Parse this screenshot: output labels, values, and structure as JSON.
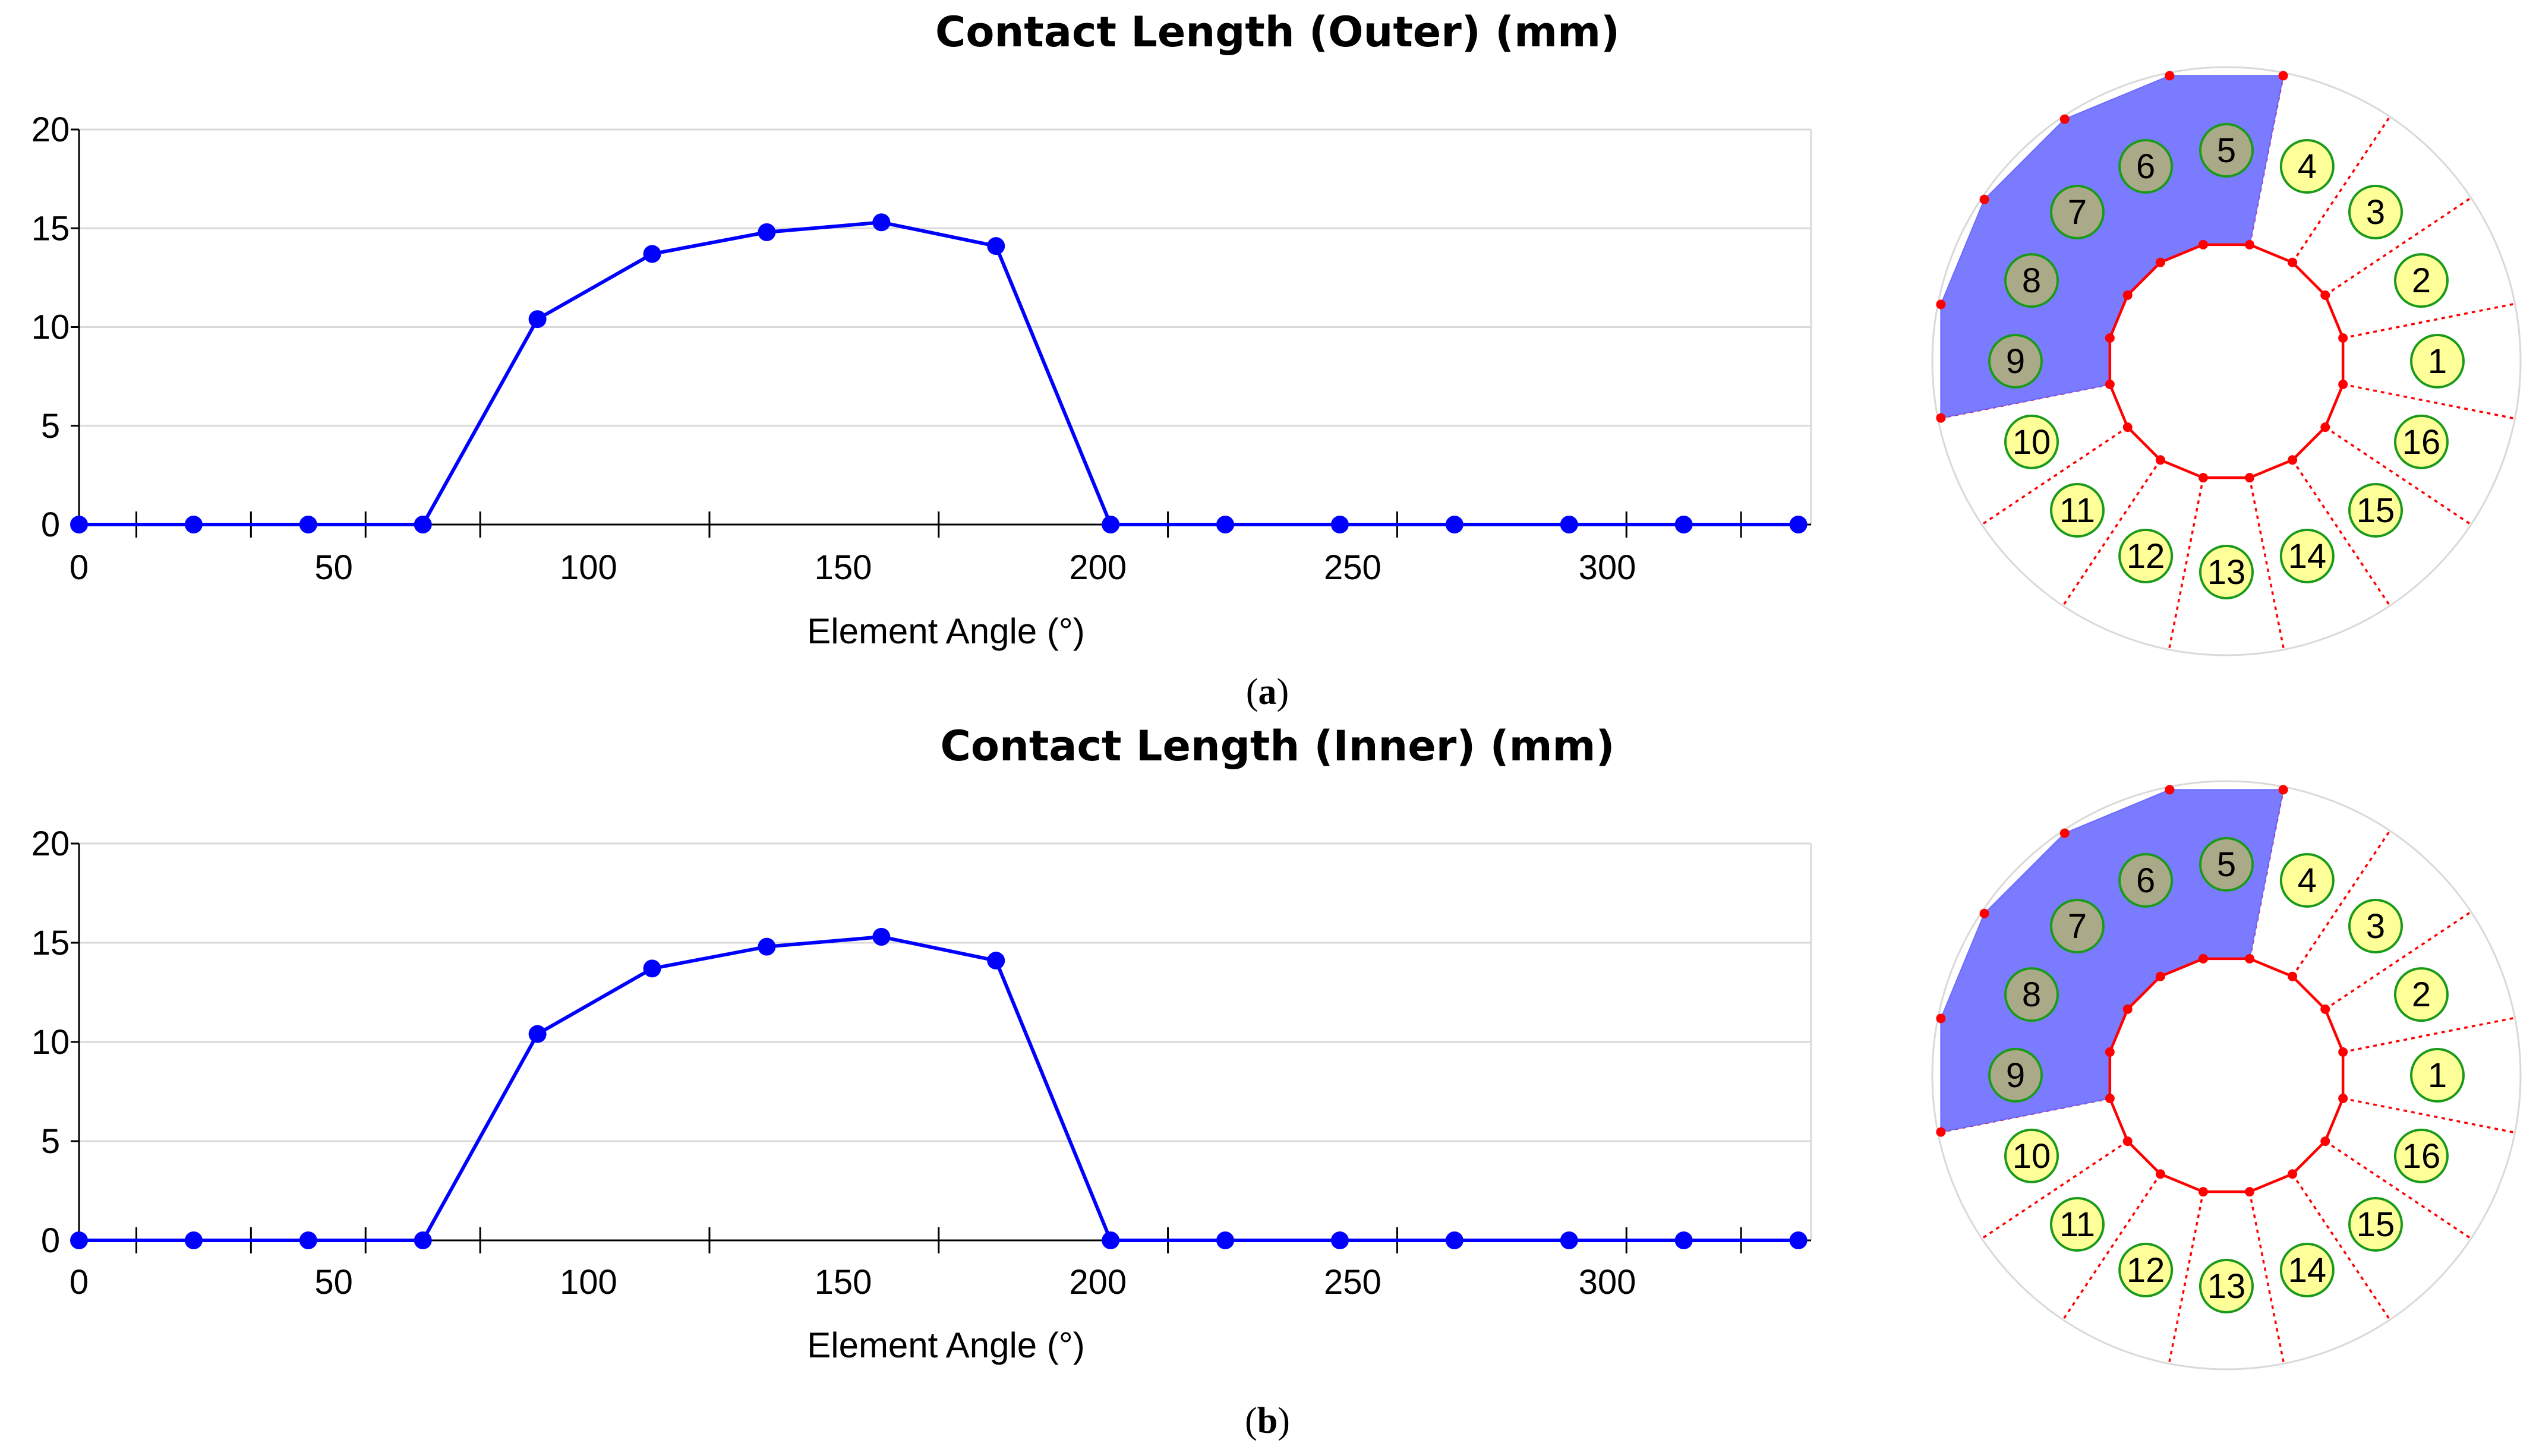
{
  "panels": [
    {
      "caption_label": "a",
      "chart_data": {
        "type": "line",
        "title": "Contact Length (Outer) (mm)",
        "xlabel": "Element Angle (°)",
        "ylabel": "",
        "xlim": [
          0,
          340
        ],
        "ylim": [
          0,
          20
        ],
        "xticks": [
          0,
          50,
          100,
          150,
          200,
          250,
          300
        ],
        "yticks": [
          0,
          5,
          10,
          15,
          20
        ],
        "grid": true,
        "series": [
          {
            "x": [
              0,
              22.5,
              45,
              67.5,
              90,
              112.5,
              135,
              157.5,
              180,
              202.5,
              225,
              247.5,
              270,
              292.5,
              315,
              337.5
            ],
            "values": [
              0,
              0,
              0,
              0,
              10.4,
              13.7,
              14.8,
              15.3,
              14.1,
              0,
              0,
              0,
              0,
              0,
              0,
              0
            ]
          }
        ]
      },
      "diagram": {
        "elements": [
          "1",
          "2",
          "3",
          "4",
          "5",
          "6",
          "7",
          "8",
          "9",
          "10",
          "11",
          "12",
          "13",
          "14",
          "15",
          "16"
        ],
        "contact_elements": [
          "5",
          "6",
          "7",
          "8",
          "9"
        ],
        "contact_length": [
          0,
          0,
          0,
          0,
          10.4,
          13.7,
          14.8,
          15.3,
          14.1,
          0,
          0,
          0,
          0,
          0,
          0,
          0
        ],
        "colors": {
          "in_contact": "#aaaa88",
          "no_contact": "#ffff99",
          "patch": "#7b7bff"
        }
      }
    },
    {
      "caption_label": "b",
      "chart_data": {
        "type": "line",
        "title": "Contact Length (Inner) (mm)",
        "xlabel": "Element Angle (°)",
        "ylabel": "",
        "xlim": [
          0,
          340
        ],
        "ylim": [
          0,
          20
        ],
        "xticks": [
          0,
          50,
          100,
          150,
          200,
          250,
          300
        ],
        "yticks": [
          0,
          5,
          10,
          15,
          20
        ],
        "grid": true,
        "series": [
          {
            "x": [
              0,
              22.5,
              45,
              67.5,
              90,
              112.5,
              135,
              157.5,
              180,
              202.5,
              225,
              247.5,
              270,
              292.5,
              315,
              337.5
            ],
            "values": [
              0,
              0,
              0,
              0,
              10.4,
              13.7,
              14.8,
              15.3,
              14.1,
              0,
              0,
              0,
              0,
              0,
              0,
              0
            ]
          }
        ]
      },
      "diagram": {
        "elements": [
          "1",
          "2",
          "3",
          "4",
          "5",
          "6",
          "7",
          "8",
          "9",
          "10",
          "11",
          "12",
          "13",
          "14",
          "15",
          "16"
        ],
        "contact_elements": [
          "5",
          "6",
          "7",
          "8",
          "9"
        ],
        "contact_length": [
          0,
          0,
          0,
          0,
          10.4,
          13.7,
          14.8,
          15.3,
          14.1,
          0,
          0,
          0,
          0,
          0,
          0,
          0
        ],
        "colors": {
          "in_contact": "#aaaa88",
          "no_contact": "#ffff99",
          "patch": "#7b7bff"
        }
      }
    }
  ]
}
